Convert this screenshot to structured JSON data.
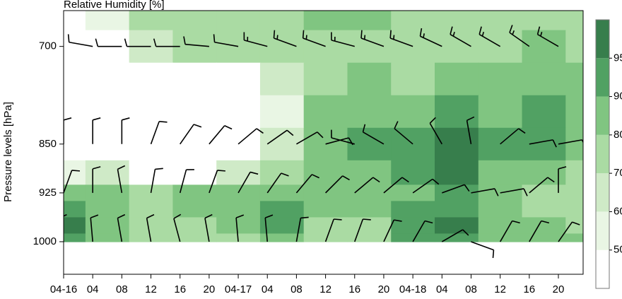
{
  "chart_data": {
    "type": "contour",
    "title": "Relative Humidity [%]",
    "ylabel": "Pressure levels [hPa]",
    "xlim": [
      0,
      71.4
    ],
    "ylim": [
      1050,
      645
    ],
    "yticks": [
      700,
      850,
      925,
      1000
    ],
    "xticks": [
      {
        "value": 0,
        "label": "04-16"
      },
      {
        "value": 4,
        "label": "04"
      },
      {
        "value": 8,
        "label": "08"
      },
      {
        "value": 12,
        "label": "12"
      },
      {
        "value": 16,
        "label": "16"
      },
      {
        "value": 20,
        "label": "20"
      },
      {
        "value": 24,
        "label": "04-17"
      },
      {
        "value": 28,
        "label": "04"
      },
      {
        "value": 32,
        "label": "08"
      },
      {
        "value": 36,
        "label": "12"
      },
      {
        "value": 40,
        "label": "16"
      },
      {
        "value": 44,
        "label": "20"
      },
      {
        "value": 48,
        "label": "04-18"
      },
      {
        "value": 52,
        "label": "04"
      },
      {
        "value": 56,
        "label": "08"
      },
      {
        "value": 60,
        "label": "12"
      },
      {
        "value": 64,
        "label": "16"
      },
      {
        "value": 68,
        "label": "20"
      }
    ],
    "colorbar": {
      "levels": [
        50,
        60,
        70,
        80,
        90,
        95
      ],
      "colors": [
        "#ffffff",
        "#e9f6e4",
        "#cfeac7",
        "#aadba3",
        "#80c581",
        "#51a163",
        "#377e4c"
      ]
    },
    "field": {
      "times": [
        0,
        6,
        12,
        18,
        24,
        30,
        36,
        42,
        48,
        54,
        60,
        66,
        72
      ],
      "levels": [
        650,
        700,
        750,
        800,
        850,
        900,
        925,
        950,
        975,
        1000
      ],
      "values": [
        [
          40,
          50,
          75,
          75,
          75,
          75,
          85,
          80,
          75,
          75,
          70,
          70,
          70
        ],
        [
          30,
          30,
          60,
          70,
          70,
          70,
          75,
          75,
          75,
          75,
          75,
          80,
          75
        ],
        [
          20,
          20,
          20,
          20,
          40,
          65,
          75,
          80,
          75,
          80,
          80,
          85,
          85
        ],
        [
          20,
          20,
          20,
          20,
          30,
          55,
          80,
          85,
          85,
          90,
          85,
          90,
          85
        ],
        [
          20,
          20,
          20,
          20,
          30,
          65,
          85,
          90,
          92,
          96,
          90,
          92,
          80
        ],
        [
          55,
          65,
          40,
          40,
          60,
          75,
          85,
          85,
          92,
          96,
          85,
          85,
          75
        ],
        [
          85,
          85,
          75,
          80,
          80,
          85,
          85,
          80,
          85,
          90,
          80,
          75,
          70
        ],
        [
          92,
          85,
          75,
          80,
          85,
          92,
          80,
          80,
          92,
          90,
          80,
          75,
          75
        ],
        [
          96,
          88,
          75,
          75,
          80,
          90,
          75,
          75,
          92,
          96,
          80,
          80,
          75
        ],
        [
          90,
          80,
          75,
          75,
          75,
          80,
          75,
          75,
          90,
          92,
          80,
          80,
          80
        ]
      ]
    },
    "wind": {
      "times": [
        0,
        4,
        8,
        12,
        16,
        20,
        24,
        28,
        32,
        36,
        40,
        44,
        48,
        52,
        56,
        60,
        64,
        68
      ],
      "levels": [
        700,
        850,
        925,
        1000
      ],
      "direction": [
        [
          270,
          280,
          270,
          270,
          270,
          275,
          280,
          285,
          290,
          290,
          285,
          290,
          290,
          295,
          300,
          300,
          305,
          300
        ],
        [
          0,
          0,
          0,
          20,
          35,
          40,
          50,
          55,
          60,
          75,
          285,
          300,
          310,
          330,
          350,
          50,
          80,
          80
        ],
        [
          20,
          0,
          350,
          10,
          15,
          20,
          30,
          35,
          40,
          45,
          50,
          50,
          55,
          70,
          80,
          80,
          50,
          0
        ],
        [
          350,
          355,
          350,
          350,
          345,
          350,
          355,
          355,
          10,
          20,
          20,
          25,
          30,
          60,
          110,
          30,
          30,
          35
        ]
      ],
      "speed": [
        [
          10,
          10,
          10,
          10,
          10,
          10,
          10,
          15,
          15,
          15,
          15,
          15,
          15,
          15,
          15,
          15,
          15,
          15
        ],
        [
          10,
          10,
          10,
          10,
          10,
          10,
          10,
          10,
          10,
          10,
          10,
          10,
          10,
          10,
          10,
          10,
          10,
          10
        ],
        [
          10,
          10,
          10,
          10,
          10,
          10,
          10,
          10,
          10,
          10,
          10,
          10,
          10,
          10,
          10,
          10,
          10,
          10
        ],
        [
          10,
          10,
          10,
          10,
          10,
          10,
          10,
          10,
          10,
          10,
          10,
          10,
          10,
          10,
          10,
          10,
          10,
          10
        ]
      ]
    }
  }
}
